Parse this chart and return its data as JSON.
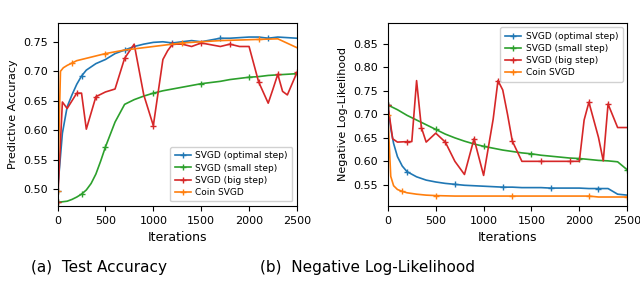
{
  "fig_width": 6.4,
  "fig_height": 2.86,
  "dpi": 100,
  "left_caption": "(a)  Test Accuracy",
  "right_caption": "(b)  Negative Log-Likelihood",
  "left_ylabel": "Predictive Accuracy",
  "right_ylabel": "Negative Log-Likelihood",
  "xlabel": "Iterations",
  "left_ylim": [
    0.472,
    0.782
  ],
  "left_yticks": [
    0.5,
    0.55,
    0.6,
    0.65,
    0.7,
    0.75
  ],
  "right_ylim": [
    0.505,
    0.895
  ],
  "right_yticks": [
    0.55,
    0.6,
    0.65,
    0.7,
    0.75,
    0.8,
    0.85
  ],
  "xlim": [
    0,
    2500
  ],
  "xticks": [
    0,
    500,
    1000,
    1500,
    2000,
    2500
  ],
  "colors": {
    "optimal": "#1f77b4",
    "small": "#2ca02c",
    "big": "#d62728",
    "coin": "#ff7f0e"
  },
  "legend_labels": [
    "SVGD (optimal step)",
    "SVGD (small step)",
    "SVGD (big step)",
    "Coin SVGD"
  ],
  "left_optimal_x": [
    0,
    50,
    100,
    150,
    200,
    250,
    300,
    400,
    500,
    600,
    700,
    800,
    900,
    1000,
    1100,
    1200,
    1300,
    1400,
    1500,
    1600,
    1700,
    1800,
    1900,
    2000,
    2100,
    2200,
    2300,
    2400,
    2500
  ],
  "left_optimal_y": [
    0.498,
    0.595,
    0.64,
    0.66,
    0.678,
    0.692,
    0.702,
    0.713,
    0.72,
    0.73,
    0.736,
    0.742,
    0.746,
    0.749,
    0.75,
    0.748,
    0.75,
    0.752,
    0.75,
    0.753,
    0.756,
    0.756,
    0.757,
    0.758,
    0.758,
    0.756,
    0.758,
    0.757,
    0.756
  ],
  "left_small_x": [
    0,
    50,
    100,
    150,
    200,
    250,
    300,
    350,
    400,
    450,
    500,
    600,
    700,
    800,
    900,
    1000,
    1100,
    1200,
    1300,
    1400,
    1500,
    1600,
    1700,
    1800,
    1900,
    2000,
    2100,
    2200,
    2300,
    2400,
    2500
  ],
  "left_small_y": [
    0.478,
    0.479,
    0.48,
    0.483,
    0.487,
    0.492,
    0.499,
    0.51,
    0.526,
    0.548,
    0.572,
    0.614,
    0.644,
    0.652,
    0.658,
    0.663,
    0.667,
    0.67,
    0.673,
    0.676,
    0.679,
    0.681,
    0.683,
    0.686,
    0.688,
    0.69,
    0.691,
    0.693,
    0.694,
    0.695,
    0.696
  ],
  "left_big_x": [
    0,
    50,
    100,
    200,
    250,
    300,
    400,
    500,
    600,
    700,
    800,
    900,
    1000,
    1100,
    1150,
    1200,
    1300,
    1400,
    1500,
    1600,
    1700,
    1800,
    1900,
    2000,
    2100,
    2200,
    2250,
    2300,
    2350,
    2400,
    2500
  ],
  "left_big_y": [
    0.478,
    0.648,
    0.637,
    0.663,
    0.663,
    0.602,
    0.657,
    0.665,
    0.67,
    0.722,
    0.746,
    0.66,
    0.608,
    0.72,
    0.735,
    0.746,
    0.746,
    0.742,
    0.748,
    0.745,
    0.742,
    0.746,
    0.742,
    0.742,
    0.682,
    0.646,
    0.67,
    0.695,
    0.666,
    0.66,
    0.698
  ],
  "left_coin_x": [
    0,
    30,
    60,
    100,
    150,
    200,
    300,
    400,
    500,
    700,
    900,
    1100,
    1300,
    1500,
    1700,
    1900,
    2100,
    2300,
    2500
  ],
  "left_coin_y": [
    0.498,
    0.7,
    0.706,
    0.71,
    0.714,
    0.718,
    0.722,
    0.726,
    0.73,
    0.736,
    0.74,
    0.744,
    0.748,
    0.75,
    0.752,
    0.753,
    0.754,
    0.755,
    0.74
  ],
  "right_optimal_x": [
    0,
    30,
    60,
    100,
    150,
    200,
    300,
    400,
    500,
    600,
    700,
    800,
    900,
    1000,
    1100,
    1200,
    1300,
    1400,
    1500,
    1600,
    1700,
    1800,
    1900,
    2000,
    2100,
    2200,
    2300,
    2400,
    2500
  ],
  "right_optimal_y": [
    0.72,
    0.67,
    0.638,
    0.61,
    0.59,
    0.578,
    0.567,
    0.56,
    0.556,
    0.553,
    0.551,
    0.549,
    0.548,
    0.547,
    0.546,
    0.545,
    0.545,
    0.544,
    0.544,
    0.544,
    0.543,
    0.543,
    0.543,
    0.543,
    0.542,
    0.542,
    0.542,
    0.53,
    0.528
  ],
  "right_small_x": [
    0,
    100,
    200,
    300,
    400,
    500,
    600,
    700,
    800,
    900,
    1000,
    1100,
    1200,
    1300,
    1400,
    1500,
    1600,
    1700,
    1800,
    1900,
    2000,
    2100,
    2200,
    2300,
    2400,
    2500
  ],
  "right_small_y": [
    0.72,
    0.71,
    0.698,
    0.688,
    0.678,
    0.668,
    0.658,
    0.65,
    0.643,
    0.637,
    0.632,
    0.628,
    0.624,
    0.621,
    0.618,
    0.616,
    0.613,
    0.611,
    0.609,
    0.607,
    0.606,
    0.604,
    0.602,
    0.601,
    0.599,
    0.582
  ],
  "right_big_x": [
    0,
    50,
    100,
    200,
    250,
    300,
    350,
    400,
    500,
    600,
    700,
    800,
    900,
    1000,
    1100,
    1150,
    1200,
    1250,
    1300,
    1400,
    1500,
    1600,
    1700,
    1800,
    1900,
    2000,
    2050,
    2100,
    2200,
    2250,
    2300,
    2400,
    2500
  ],
  "right_big_y": [
    0.72,
    0.648,
    0.641,
    0.642,
    0.642,
    0.772,
    0.672,
    0.641,
    0.66,
    0.641,
    0.6,
    0.572,
    0.648,
    0.57,
    0.69,
    0.772,
    0.752,
    0.7,
    0.643,
    0.6,
    0.6,
    0.6,
    0.6,
    0.6,
    0.6,
    0.6,
    0.688,
    0.726,
    0.651,
    0.601,
    0.722,
    0.672,
    0.672
  ],
  "right_coin_x": [
    0,
    30,
    60,
    100,
    150,
    200,
    300,
    400,
    500,
    700,
    900,
    1100,
    1300,
    1500,
    1700,
    1900,
    2100,
    2200,
    2300,
    2400,
    2500
  ],
  "right_coin_y": [
    0.698,
    0.568,
    0.548,
    0.54,
    0.536,
    0.533,
    0.53,
    0.528,
    0.527,
    0.526,
    0.526,
    0.526,
    0.526,
    0.526,
    0.526,
    0.526,
    0.526,
    0.524,
    0.524,
    0.524,
    0.524
  ]
}
